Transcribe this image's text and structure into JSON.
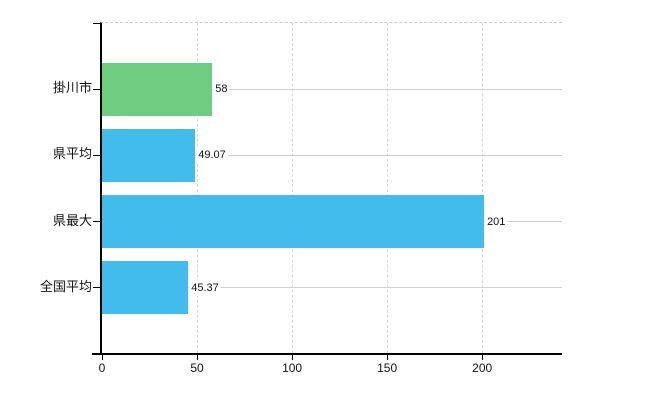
{
  "chart_data": {
    "type": "bar",
    "orientation": "horizontal",
    "title": "",
    "categories": [
      "掛川市",
      "県平均",
      "県最大",
      "全国平均"
    ],
    "values": [
      58,
      49.07,
      201,
      45.37
    ],
    "value_labels": [
      "58",
      "49.07",
      "201",
      "45.37"
    ],
    "bar_colors": [
      "#6fcd81",
      "#41bcec",
      "#41bcec",
      "#41bcec"
    ],
    "x_ticks": [
      0,
      50,
      100,
      150,
      200
    ],
    "x_tick_labels": [
      "0",
      "50",
      "100",
      "150",
      "200"
    ],
    "xlim": [
      0,
      242
    ],
    "grid": true,
    "legend": false
  },
  "colors": {
    "highlight_bar": "#6fcd81",
    "default_bar": "#41bcec",
    "axis": "#000000",
    "gridline": "#d0d0d0",
    "background": "#ffffff",
    "text": "#111111"
  }
}
